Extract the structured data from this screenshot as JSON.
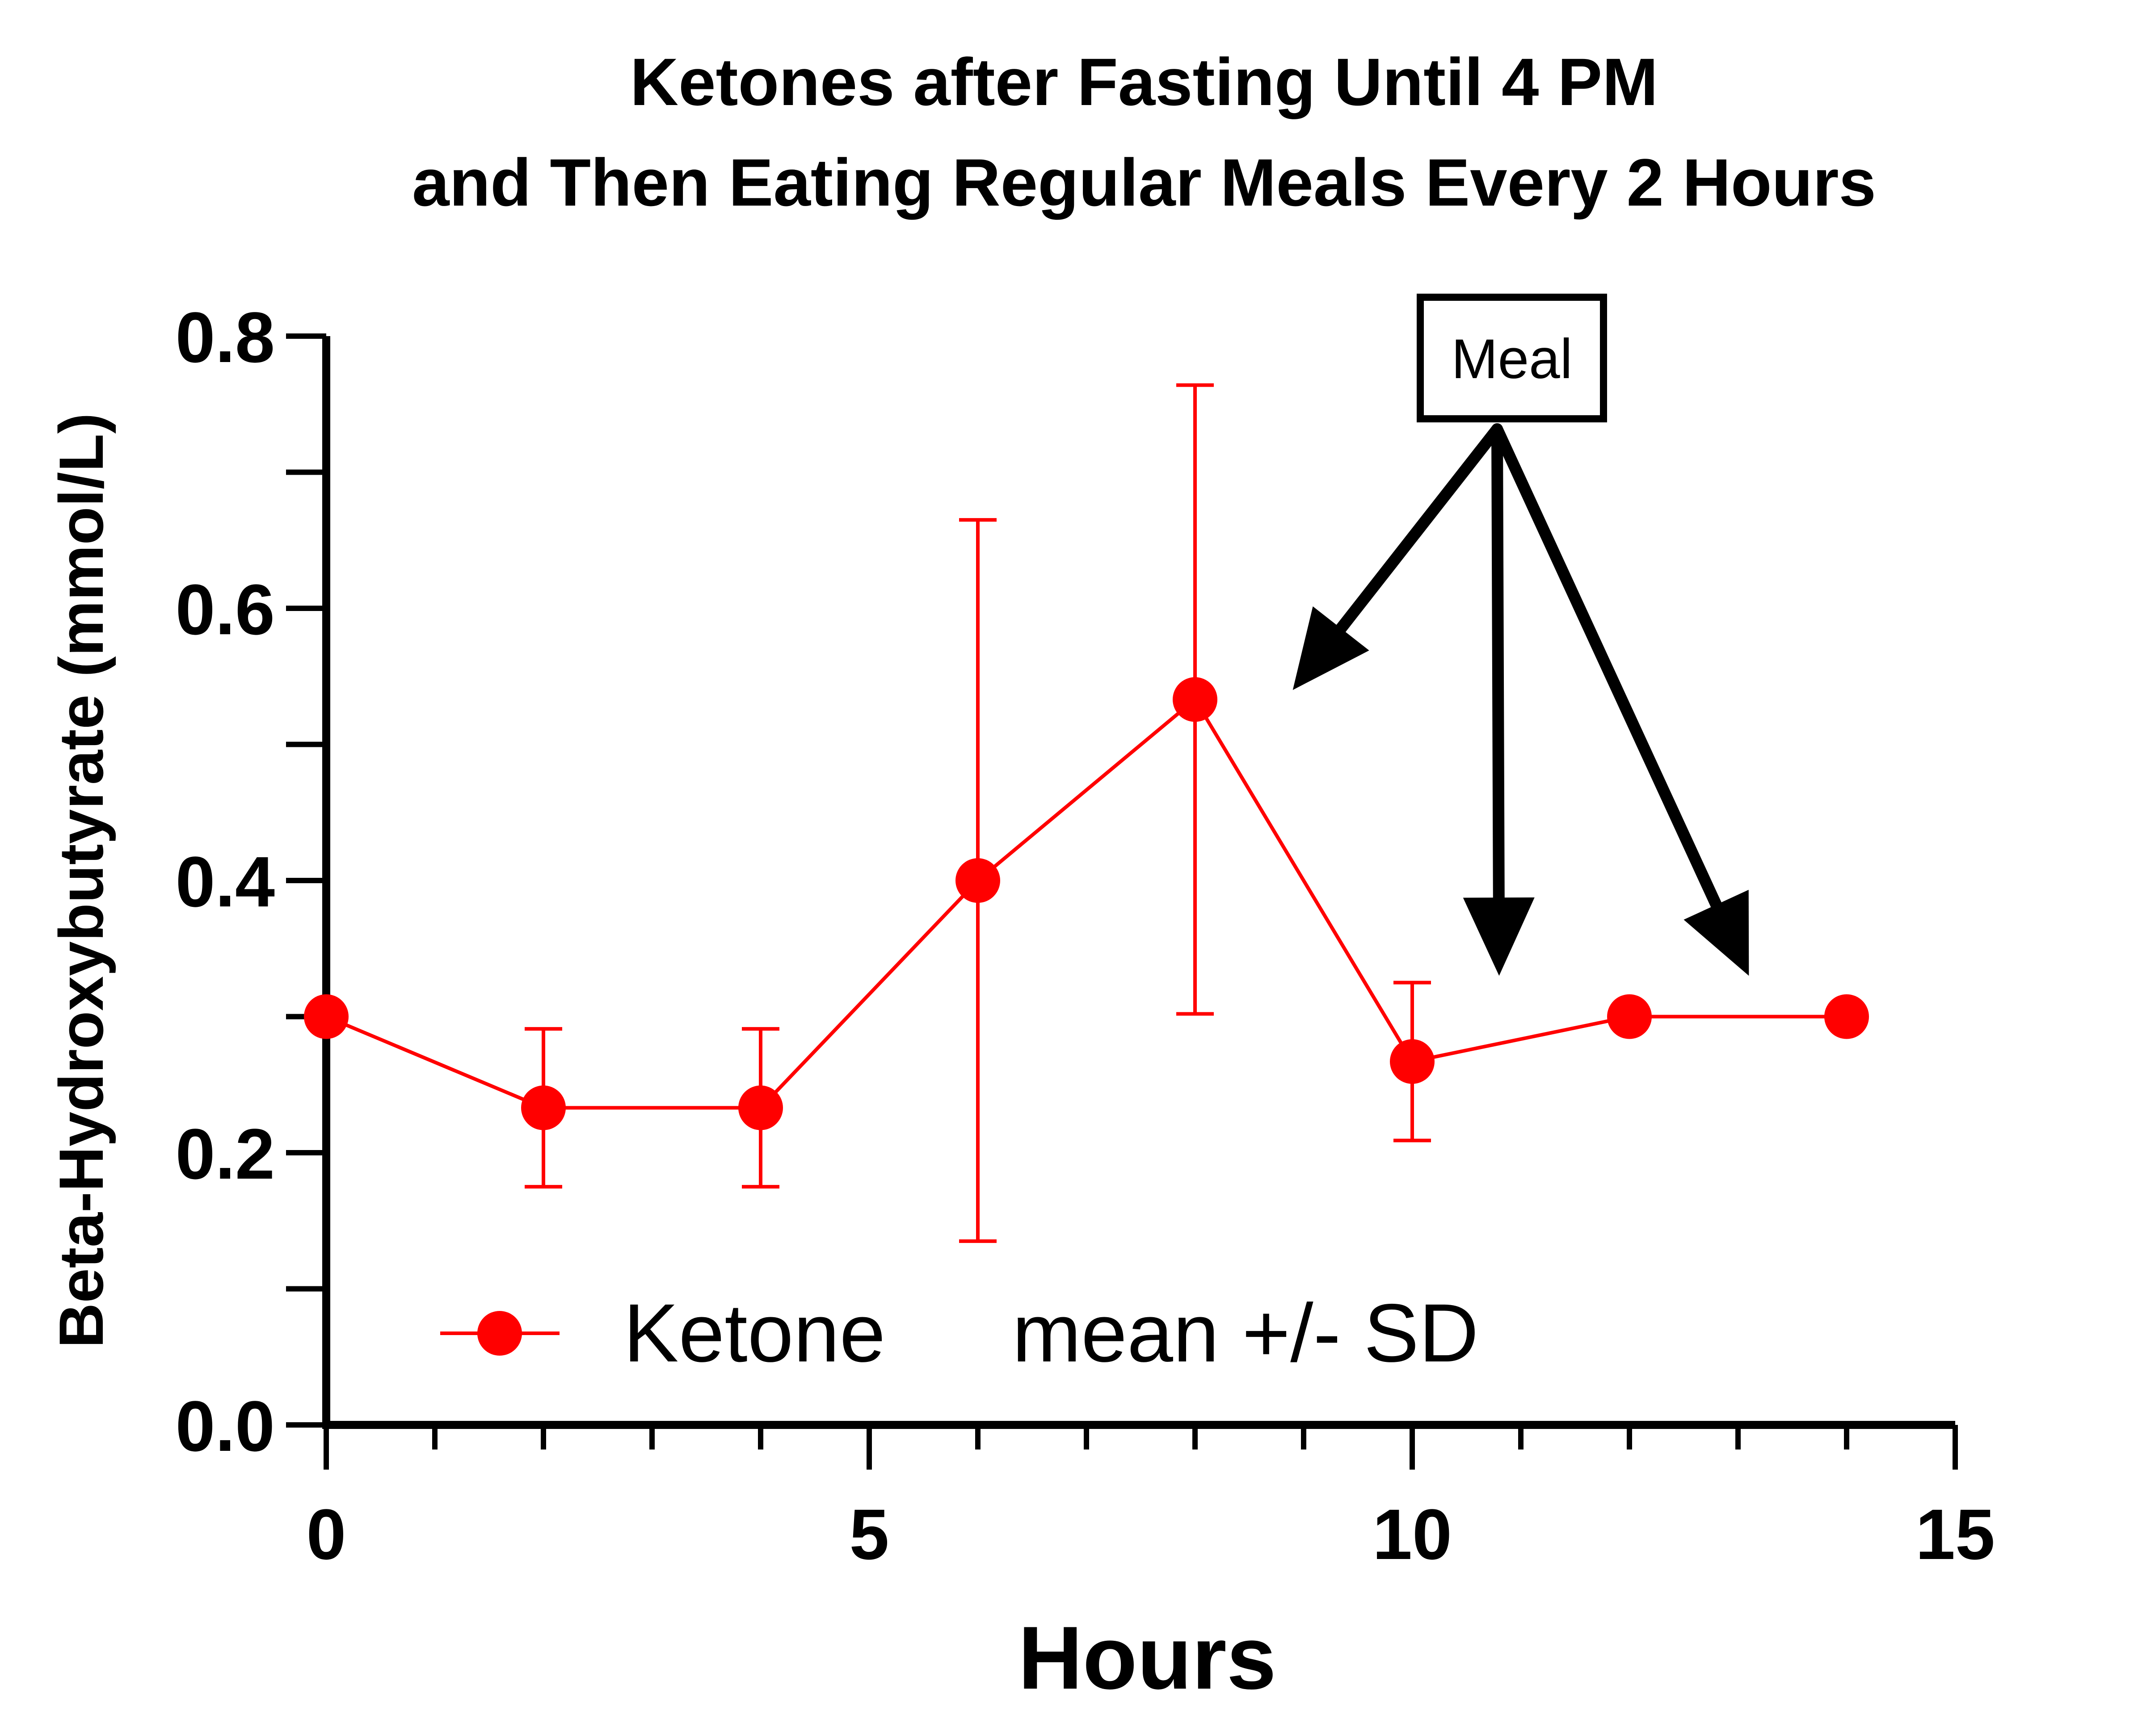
{
  "chart_data": {
    "type": "line",
    "title_line1": "Ketones after Fasting Until 4 PM",
    "title_line2": "and Then Eating Regular Meals Every 2 Hours",
    "xlabel": "Hours",
    "ylabel": "Beta-Hydroxybutyrate (mmol/L)",
    "xlim": [
      0,
      15
    ],
    "ylim": [
      0,
      0.8
    ],
    "x_ticks": [
      "0",
      "5",
      "10",
      "15"
    ],
    "y_ticks": [
      "0.0",
      "0.2",
      "0.4",
      "0.6",
      "0.8"
    ],
    "series": [
      {
        "name": "Ketone",
        "color": "#ff0000",
        "x": [
          0,
          2,
          4,
          6,
          8,
          10,
          12,
          14
        ],
        "y": [
          0.3,
          0.233,
          0.233,
          0.4,
          0.533,
          0.267,
          0.3,
          0.3
        ],
        "sd": [
          0,
          0.058,
          0.058,
          0.265,
          0.231,
          0.058,
          0,
          0
        ]
      }
    ],
    "legend": {
      "series_label": "Ketone",
      "note": "mean +/- SD",
      "placement": "bottom-left"
    },
    "annotation": {
      "label": "Meal",
      "arrow_targets": [
        {
          "x": 8.9,
          "y": 0.54
        },
        {
          "x": 10.8,
          "y": 0.33
        },
        {
          "x": 13.1,
          "y": 0.33
        }
      ]
    },
    "grid": false
  }
}
